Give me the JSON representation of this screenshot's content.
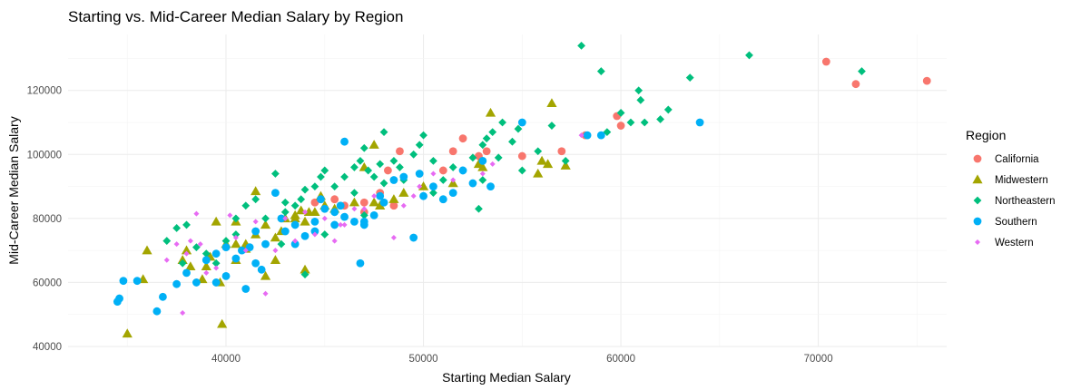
{
  "chart_data": {
    "type": "scatter",
    "title": "Starting vs. Mid-Career Median Salary by Region",
    "xlabel": "Starting Median Salary",
    "ylabel": "Mid-Career Median Salary",
    "xlim": [
      32000,
      76500
    ],
    "ylim": [
      40000,
      137500
    ],
    "xticks": [
      40000,
      50000,
      60000,
      70000
    ],
    "yticks": [
      40000,
      60000,
      80000,
      100000,
      120000
    ],
    "grid": true,
    "legend": {
      "title": "Region",
      "placement": "right"
    },
    "series": [
      {
        "name": "California",
        "color": "#F8766D",
        "shape": "circle",
        "points": [
          [
            47000,
            85000
          ],
          [
            47800,
            88000
          ],
          [
            48200,
            95000
          ],
          [
            48800,
            101000
          ],
          [
            51000,
            95000
          ],
          [
            51500,
            101000
          ],
          [
            52000,
            105000
          ],
          [
            52800,
            99500
          ],
          [
            53200,
            101000
          ],
          [
            55000,
            99500
          ],
          [
            57000,
            101000
          ],
          [
            58200,
            106000
          ],
          [
            59800,
            112000
          ],
          [
            60000,
            109000
          ],
          [
            70400,
            129000
          ],
          [
            71900,
            122000
          ],
          [
            75500,
            123000
          ],
          [
            47000,
            82000
          ],
          [
            46000,
            84000
          ],
          [
            45500,
            86000
          ],
          [
            44500,
            85000
          ],
          [
            48500,
            84000
          ]
        ]
      },
      {
        "name": "Midwestern",
        "color": "#A3A500",
        "shape": "triangle",
        "points": [
          [
            35000,
            44000
          ],
          [
            35800,
            61000
          ],
          [
            36000,
            70000
          ],
          [
            37800,
            67000
          ],
          [
            38000,
            70000
          ],
          [
            38200,
            65000
          ],
          [
            38800,
            61000
          ],
          [
            39000,
            65000
          ],
          [
            39200,
            68000
          ],
          [
            39500,
            79000
          ],
          [
            39700,
            60000
          ],
          [
            39800,
            47000
          ],
          [
            40000,
            72000
          ],
          [
            40500,
            67000
          ],
          [
            40500,
            72000
          ],
          [
            41000,
            72000
          ],
          [
            41500,
            88500
          ],
          [
            42000,
            62000
          ],
          [
            42500,
            74000
          ],
          [
            42800,
            76000
          ],
          [
            43000,
            80000
          ],
          [
            43500,
            81000
          ],
          [
            44000,
            64000
          ],
          [
            44500,
            82000
          ],
          [
            44800,
            87000
          ],
          [
            45000,
            84000
          ],
          [
            47500,
            103000
          ],
          [
            47000,
            96000
          ],
          [
            47500,
            85000
          ],
          [
            48500,
            86000
          ],
          [
            49000,
            88000
          ],
          [
            50000,
            90000
          ],
          [
            51500,
            91000
          ],
          [
            52800,
            97000
          ],
          [
            53000,
            96000
          ],
          [
            53400,
            113000
          ],
          [
            55800,
            94000
          ],
          [
            56000,
            98000
          ],
          [
            56300,
            97000
          ],
          [
            56500,
            116000
          ],
          [
            57200,
            96500
          ],
          [
            40500,
            79000
          ],
          [
            41000,
            70500
          ],
          [
            41500,
            75000
          ],
          [
            42500,
            67000
          ],
          [
            43500,
            80000
          ],
          [
            44000,
            79000
          ],
          [
            44200,
            82000
          ],
          [
            45500,
            83000
          ],
          [
            46500,
            85000
          ],
          [
            47800,
            84000
          ],
          [
            42000,
            78000
          ],
          [
            43800,
            82500
          ]
        ]
      },
      {
        "name": "Northeastern",
        "color": "#00BF7D",
        "shape": "diamond",
        "points": [
          [
            37000,
            73000
          ],
          [
            37500,
            77000
          ],
          [
            37800,
            66000
          ],
          [
            38000,
            78000
          ],
          [
            38500,
            71000
          ],
          [
            39000,
            69000
          ],
          [
            39500,
            66000
          ],
          [
            40000,
            73000
          ],
          [
            40500,
            75000
          ],
          [
            41000,
            84000
          ],
          [
            41500,
            86000
          ],
          [
            42000,
            80000
          ],
          [
            42500,
            94000
          ],
          [
            43000,
            82000
          ],
          [
            43500,
            84000
          ],
          [
            43800,
            86000
          ],
          [
            44000,
            89000
          ],
          [
            44500,
            90000
          ],
          [
            44800,
            93000
          ],
          [
            45000,
            95000
          ],
          [
            45500,
            90000
          ],
          [
            46000,
            93000
          ],
          [
            46500,
            96000
          ],
          [
            46800,
            98000
          ],
          [
            47000,
            102000
          ],
          [
            47200,
            95000
          ],
          [
            47500,
            93000
          ],
          [
            47800,
            97000
          ],
          [
            48000,
            91000
          ],
          [
            48500,
            98000
          ],
          [
            48800,
            96000
          ],
          [
            49000,
            92000
          ],
          [
            49500,
            100000
          ],
          [
            49800,
            103000
          ],
          [
            50000,
            106000
          ],
          [
            50500,
            98000
          ],
          [
            51000,
            92000
          ],
          [
            51500,
            96000
          ],
          [
            52000,
            95000
          ],
          [
            52500,
            99000
          ],
          [
            53000,
            103000
          ],
          [
            53200,
            105000
          ],
          [
            53500,
            107000
          ],
          [
            53800,
            99000
          ],
          [
            54000,
            110000
          ],
          [
            54500,
            104000
          ],
          [
            54800,
            108000
          ],
          [
            55000,
            95000
          ],
          [
            55800,
            101000
          ],
          [
            56500,
            109000
          ],
          [
            57200,
            98000
          ],
          [
            58000,
            134000
          ],
          [
            59000,
            126000
          ],
          [
            59300,
            107000
          ],
          [
            60000,
            113000
          ],
          [
            60500,
            110000
          ],
          [
            60900,
            120000
          ],
          [
            61000,
            117000
          ],
          [
            61200,
            110000
          ],
          [
            62000,
            111000
          ],
          [
            62400,
            114000
          ],
          [
            63500,
            124000
          ],
          [
            66500,
            131000
          ],
          [
            72200,
            126000
          ],
          [
            52800,
            83000
          ],
          [
            47000,
            81000
          ],
          [
            45000,
            75000
          ],
          [
            44000,
            62500
          ],
          [
            42800,
            72000
          ],
          [
            40500,
            80000
          ],
          [
            50500,
            88000
          ],
          [
            48000,
            107000
          ],
          [
            46500,
            88000
          ],
          [
            43000,
            85000
          ],
          [
            53000,
            92000
          ]
        ]
      },
      {
        "name": "Southern",
        "color": "#00B0F6",
        "shape": "circle",
        "points": [
          [
            34500,
            54000
          ],
          [
            34600,
            55000
          ],
          [
            34800,
            60500
          ],
          [
            35500,
            60500
          ],
          [
            36500,
            51000
          ],
          [
            36800,
            55500
          ],
          [
            37500,
            59500
          ],
          [
            38000,
            63000
          ],
          [
            38500,
            60000
          ],
          [
            39000,
            67000
          ],
          [
            39500,
            69000
          ],
          [
            40000,
            62000
          ],
          [
            40500,
            67500
          ],
          [
            40800,
            70000
          ],
          [
            41000,
            58000
          ],
          [
            41200,
            71000
          ],
          [
            41500,
            66000
          ],
          [
            41800,
            64000
          ],
          [
            42000,
            72000
          ],
          [
            42500,
            88000
          ],
          [
            42800,
            80000
          ],
          [
            43000,
            76000
          ],
          [
            43500,
            78000
          ],
          [
            44000,
            74500
          ],
          [
            44500,
            79000
          ],
          [
            44800,
            86000
          ],
          [
            45000,
            83000
          ],
          [
            45500,
            82000
          ],
          [
            45800,
            84000
          ],
          [
            46000,
            104000
          ],
          [
            46500,
            79000
          ],
          [
            46800,
            66000
          ],
          [
            47000,
            78000
          ],
          [
            47500,
            81000
          ],
          [
            47800,
            87000
          ],
          [
            48000,
            85000
          ],
          [
            48500,
            92000
          ],
          [
            49000,
            93000
          ],
          [
            49500,
            74000
          ],
          [
            49800,
            94000
          ],
          [
            50000,
            87000
          ],
          [
            50500,
            90000
          ],
          [
            51000,
            86000
          ],
          [
            51500,
            88000
          ],
          [
            52000,
            95000
          ],
          [
            52500,
            91000
          ],
          [
            53000,
            98000
          ],
          [
            53400,
            90000
          ],
          [
            55000,
            110000
          ],
          [
            58300,
            106000
          ],
          [
            59000,
            106000
          ],
          [
            64000,
            110000
          ],
          [
            40000,
            71000
          ],
          [
            41500,
            76000
          ],
          [
            43500,
            72000
          ],
          [
            44500,
            76000
          ],
          [
            45500,
            78000
          ],
          [
            46000,
            80500
          ],
          [
            47000,
            79000
          ],
          [
            39500,
            60000
          ]
        ]
      },
      {
        "name": "Western",
        "color": "#E76BF3",
        "shape": "diamond-small",
        "points": [
          [
            37000,
            67000
          ],
          [
            37500,
            72000
          ],
          [
            37800,
            50500
          ],
          [
            38200,
            73000
          ],
          [
            38500,
            81500
          ],
          [
            38700,
            72000
          ],
          [
            39000,
            63000
          ],
          [
            39500,
            64500
          ],
          [
            40200,
            81000
          ],
          [
            40500,
            74000
          ],
          [
            41000,
            70000
          ],
          [
            41500,
            79000
          ],
          [
            42000,
            56500
          ],
          [
            42500,
            70000
          ],
          [
            43000,
            80000
          ],
          [
            43500,
            73000
          ],
          [
            44000,
            82000
          ],
          [
            44500,
            75000
          ],
          [
            45000,
            80000
          ],
          [
            45500,
            73000
          ],
          [
            45800,
            78000
          ],
          [
            46000,
            78000
          ],
          [
            46500,
            83000
          ],
          [
            47000,
            83000
          ],
          [
            47500,
            87000
          ],
          [
            48500,
            74000
          ],
          [
            49000,
            84000
          ],
          [
            49500,
            87000
          ],
          [
            49800,
            90000
          ],
          [
            50500,
            94000
          ],
          [
            51500,
            92000
          ],
          [
            53000,
            94000
          ],
          [
            53500,
            97000
          ],
          [
            58000,
            106000
          ],
          [
            38000,
            69000
          ]
        ]
      }
    ]
  }
}
